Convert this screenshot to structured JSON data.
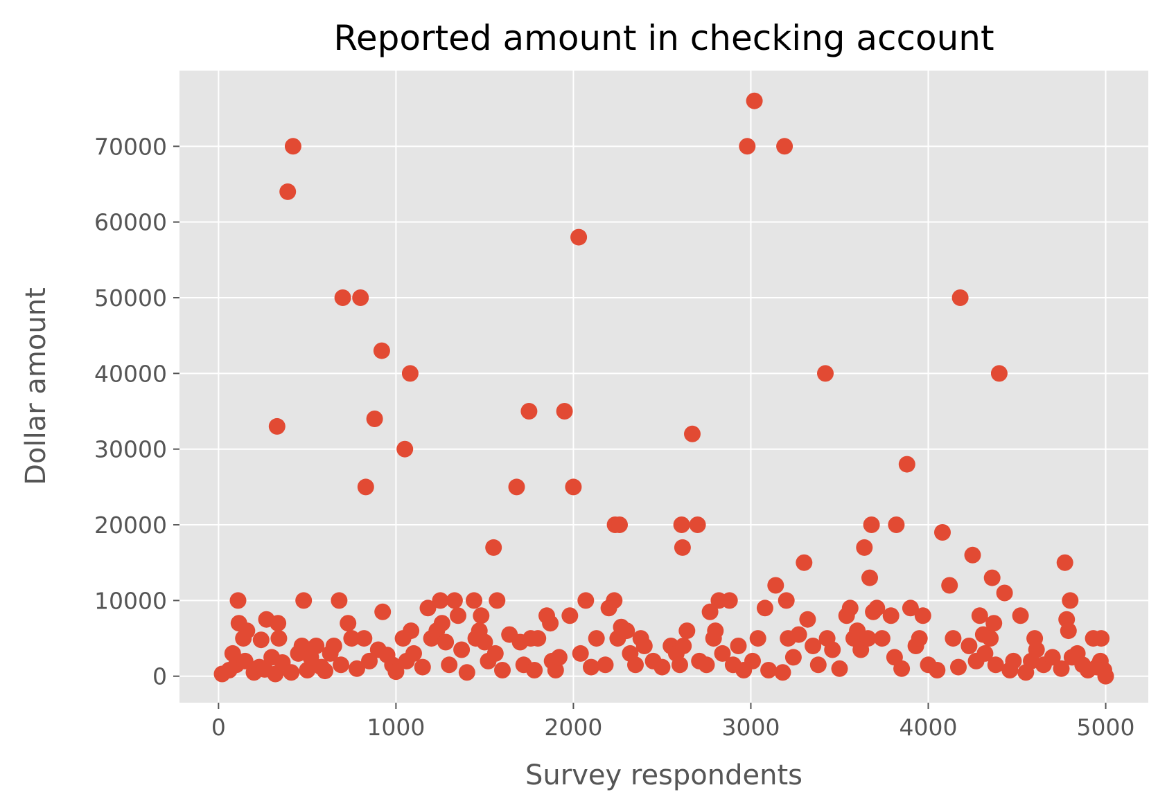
{
  "chart_data": {
    "type": "scatter",
    "title": "Reported amount in checking account",
    "xlabel": "Survey respondents",
    "ylabel": "Dollar amount",
    "xlim": [
      -220,
      5240
    ],
    "ylim": [
      -3500,
      80000
    ],
    "xticks": [
      0,
      1000,
      2000,
      3000,
      4000,
      5000
    ],
    "yticks": [
      0,
      10000,
      20000,
      30000,
      40000,
      50000,
      60000,
      70000
    ],
    "grid": true,
    "legend": "none",
    "colors": {
      "marker": "#e24a33",
      "plot_bg": "#e5e5e5",
      "grid": "#ffffff",
      "tick_text": "#555555"
    },
    "points": [
      [
        20,
        300
      ],
      [
        60,
        800
      ],
      [
        80,
        3000
      ],
      [
        100,
        1500
      ],
      [
        110,
        10000
      ],
      [
        115,
        7000
      ],
      [
        140,
        5000
      ],
      [
        150,
        2000
      ],
      [
        160,
        6000
      ],
      [
        200,
        500
      ],
      [
        230,
        1200
      ],
      [
        240,
        4800
      ],
      [
        260,
        900
      ],
      [
        270,
        7500
      ],
      [
        300,
        2500
      ],
      [
        320,
        300
      ],
      [
        330,
        33000
      ],
      [
        335,
        7000
      ],
      [
        340,
        5000
      ],
      [
        360,
        1800
      ],
      [
        390,
        64000
      ],
      [
        410,
        500
      ],
      [
        420,
        70000
      ],
      [
        450,
        3000
      ],
      [
        470,
        4000
      ],
      [
        480,
        10000
      ],
      [
        500,
        800
      ],
      [
        520,
        2500
      ],
      [
        550,
        4000
      ],
      [
        580,
        1200
      ],
      [
        600,
        700
      ],
      [
        630,
        3000
      ],
      [
        650,
        4000
      ],
      [
        680,
        10000
      ],
      [
        690,
        1500
      ],
      [
        700,
        50000
      ],
      [
        730,
        7000
      ],
      [
        750,
        5000
      ],
      [
        780,
        1000
      ],
      [
        800,
        50000
      ],
      [
        820,
        5000
      ],
      [
        830,
        25000
      ],
      [
        850,
        2000
      ],
      [
        880,
        34000
      ],
      [
        900,
        3500
      ],
      [
        920,
        43000
      ],
      [
        925,
        8500
      ],
      [
        950,
        2800
      ],
      [
        980,
        1500
      ],
      [
        1000,
        600
      ],
      [
        1040,
        5000
      ],
      [
        1050,
        30000
      ],
      [
        1060,
        2000
      ],
      [
        1080,
        40000
      ],
      [
        1085,
        6000
      ],
      [
        1100,
        3000
      ],
      [
        1150,
        1200
      ],
      [
        1180,
        9000
      ],
      [
        1200,
        5000
      ],
      [
        1230,
        6000
      ],
      [
        1250,
        10000
      ],
      [
        1260,
        7000
      ],
      [
        1280,
        4500
      ],
      [
        1300,
        1500
      ],
      [
        1330,
        10000
      ],
      [
        1350,
        8000
      ],
      [
        1370,
        3500
      ],
      [
        1400,
        500
      ],
      [
        1440,
        10000
      ],
      [
        1450,
        5000
      ],
      [
        1470,
        6000
      ],
      [
        1480,
        8000
      ],
      [
        1500,
        4500
      ],
      [
        1520,
        2000
      ],
      [
        1550,
        17000
      ],
      [
        1560,
        3000
      ],
      [
        1570,
        10000
      ],
      [
        1600,
        800
      ],
      [
        1640,
        5500
      ],
      [
        1680,
        25000
      ],
      [
        1700,
        4500
      ],
      [
        1720,
        1500
      ],
      [
        1750,
        35000
      ],
      [
        1760,
        5000
      ],
      [
        1780,
        800
      ],
      [
        1800,
        5000
      ],
      [
        1850,
        8000
      ],
      [
        1870,
        7000
      ],
      [
        1880,
        2000
      ],
      [
        1900,
        800
      ],
      [
        1920,
        2500
      ],
      [
        1950,
        35000
      ],
      [
        1980,
        8000
      ],
      [
        2000,
        25000
      ],
      [
        2030,
        58000
      ],
      [
        2040,
        3000
      ],
      [
        2070,
        10000
      ],
      [
        2100,
        1200
      ],
      [
        2130,
        5000
      ],
      [
        2180,
        1500
      ],
      [
        2200,
        9000
      ],
      [
        2230,
        10000
      ],
      [
        2235,
        20000
      ],
      [
        2250,
        5000
      ],
      [
        2260,
        20000
      ],
      [
        2270,
        6500
      ],
      [
        2300,
        6000
      ],
      [
        2320,
        3000
      ],
      [
        2350,
        1500
      ],
      [
        2380,
        5000
      ],
      [
        2400,
        4000
      ],
      [
        2450,
        2000
      ],
      [
        2500,
        1200
      ],
      [
        2550,
        4000
      ],
      [
        2580,
        3000
      ],
      [
        2600,
        1500
      ],
      [
        2610,
        20000
      ],
      [
        2615,
        17000
      ],
      [
        2620,
        4000
      ],
      [
        2640,
        6000
      ],
      [
        2670,
        32000
      ],
      [
        2700,
        20000
      ],
      [
        2710,
        2000
      ],
      [
        2750,
        1500
      ],
      [
        2770,
        8500
      ],
      [
        2790,
        5000
      ],
      [
        2800,
        6000
      ],
      [
        2820,
        10000
      ],
      [
        2840,
        3000
      ],
      [
        2880,
        10000
      ],
      [
        2900,
        1500
      ],
      [
        2930,
        4000
      ],
      [
        2960,
        800
      ],
      [
        2980,
        70000
      ],
      [
        3010,
        2000
      ],
      [
        3020,
        76000
      ],
      [
        3040,
        5000
      ],
      [
        3080,
        9000
      ],
      [
        3100,
        800
      ],
      [
        3140,
        12000
      ],
      [
        3180,
        500
      ],
      [
        3190,
        70000
      ],
      [
        3200,
        10000
      ],
      [
        3210,
        5000
      ],
      [
        3240,
        2500
      ],
      [
        3270,
        5500
      ],
      [
        3300,
        15000
      ],
      [
        3320,
        7500
      ],
      [
        3350,
        4000
      ],
      [
        3380,
        1500
      ],
      [
        3420,
        40000
      ],
      [
        3430,
        5000
      ],
      [
        3460,
        3500
      ],
      [
        3500,
        1000
      ],
      [
        3540,
        8000
      ],
      [
        3560,
        9000
      ],
      [
        3580,
        5000
      ],
      [
        3600,
        6000
      ],
      [
        3620,
        3500
      ],
      [
        3640,
        17000
      ],
      [
        3660,
        5000
      ],
      [
        3670,
        13000
      ],
      [
        3680,
        20000
      ],
      [
        3690,
        8500
      ],
      [
        3710,
        9000
      ],
      [
        3740,
        5000
      ],
      [
        3790,
        8000
      ],
      [
        3810,
        2500
      ],
      [
        3820,
        20000
      ],
      [
        3850,
        1000
      ],
      [
        3880,
        28000
      ],
      [
        3900,
        9000
      ],
      [
        3930,
        4000
      ],
      [
        3950,
        5000
      ],
      [
        3970,
        8000
      ],
      [
        4000,
        1500
      ],
      [
        4050,
        800
      ],
      [
        4080,
        19000
      ],
      [
        4120,
        12000
      ],
      [
        4140,
        5000
      ],
      [
        4170,
        1200
      ],
      [
        4180,
        50000
      ],
      [
        4230,
        4000
      ],
      [
        4250,
        16000
      ],
      [
        4270,
        2000
      ],
      [
        4290,
        8000
      ],
      [
        4310,
        5500
      ],
      [
        4320,
        3000
      ],
      [
        4350,
        5000
      ],
      [
        4360,
        13000
      ],
      [
        4370,
        7000
      ],
      [
        4380,
        1500
      ],
      [
        4400,
        40000
      ],
      [
        4430,
        11000
      ],
      [
        4460,
        800
      ],
      [
        4480,
        2000
      ],
      [
        4520,
        8000
      ],
      [
        4550,
        500
      ],
      [
        4580,
        2000
      ],
      [
        4600,
        5000
      ],
      [
        4610,
        3500
      ],
      [
        4650,
        1500
      ],
      [
        4700,
        2500
      ],
      [
        4750,
        1000
      ],
      [
        4770,
        15000
      ],
      [
        4780,
        7500
      ],
      [
        4790,
        6000
      ],
      [
        4800,
        10000
      ],
      [
        4810,
        2500
      ],
      [
        4840,
        3000
      ],
      [
        4870,
        1500
      ],
      [
        4900,
        800
      ],
      [
        4930,
        5000
      ],
      [
        4950,
        1200
      ],
      [
        4970,
        2000
      ],
      [
        4975,
        5000
      ],
      [
        4990,
        800
      ],
      [
        5000,
        0
      ]
    ]
  }
}
